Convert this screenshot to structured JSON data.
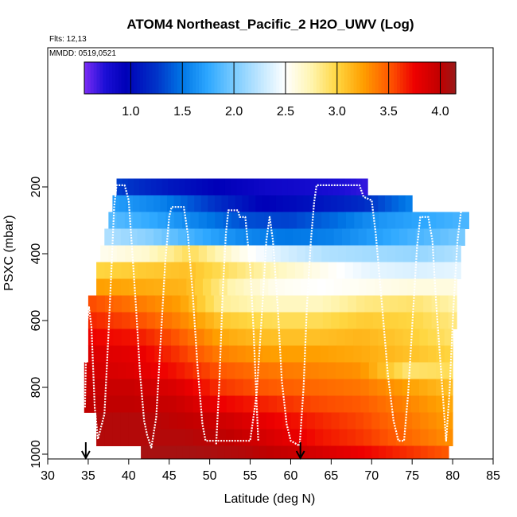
{
  "chart_data": {
    "type": "heatmap",
    "title": "ATOM4 Northeast_Pacific_2 H2O_UWV (Log)",
    "flights_note": "Flts: 12,13",
    "date_note": "MMDD: 0519,0521",
    "xlabel": "Latitude (deg N)",
    "ylabel": "PSXC (mbar)",
    "xlim": [
      30,
      85
    ],
    "ylim": [
      1000,
      0
    ],
    "x_ticks": [
      30,
      35,
      40,
      45,
      50,
      55,
      60,
      65,
      70,
      75,
      80,
      85
    ],
    "x_tick_labels": [
      "30",
      "35",
      "40",
      "45",
      "50",
      "55",
      "60",
      "65",
      "70",
      "75",
      "80",
      "85"
    ],
    "y_ticks": [
      200,
      400,
      600,
      800,
      1000
    ],
    "y_tick_labels": [
      "200",
      "400",
      "600",
      "800",
      "1000"
    ],
    "colorbar": {
      "range": [
        0.55,
        4.15
      ],
      "ticks": [
        1.0,
        1.5,
        2.0,
        2.5,
        3.0,
        3.5,
        4.0
      ],
      "tick_labels": [
        "1.0",
        "1.5",
        "2.0",
        "2.5",
        "3.0",
        "3.5",
        "4.0"
      ],
      "stops": [
        {
          "v": 0.55,
          "color": "#7b2cf5"
        },
        {
          "v": 0.75,
          "color": "#1c0fd6"
        },
        {
          "v": 0.95,
          "color": "#0000b8"
        },
        {
          "v": 1.25,
          "color": "#0033c8"
        },
        {
          "v": 1.5,
          "color": "#0077e6"
        },
        {
          "v": 1.75,
          "color": "#2ea8ff"
        },
        {
          "v": 2.0,
          "color": "#79cbff"
        },
        {
          "v": 2.25,
          "color": "#bfe6ff"
        },
        {
          "v": 2.5,
          "color": "#ffffff"
        },
        {
          "v": 2.75,
          "color": "#fff5b0"
        },
        {
          "v": 3.0,
          "color": "#ffd640"
        },
        {
          "v": 3.25,
          "color": "#ff9f00"
        },
        {
          "v": 3.5,
          "color": "#ff5a00"
        },
        {
          "v": 3.75,
          "color": "#ee0000"
        },
        {
          "v": 4.0,
          "color": "#c00000"
        },
        {
          "v": 4.15,
          "color": "#9a1a1a"
        }
      ]
    },
    "pressure_levels": [
      {
        "p": 200,
        "lat_start": 38.5,
        "lat_end": 69.5,
        "values": [
          1.3,
          1.1,
          0.95,
          0.85,
          0.8,
          0.7
        ]
      },
      {
        "p": 250,
        "lat_start": 38.0,
        "lat_end": 75.0,
        "values": [
          1.7,
          1.55,
          1.25,
          0.95,
          1.05,
          1.2,
          1.55
        ]
      },
      {
        "p": 300,
        "lat_start": 37.5,
        "lat_end": 82.0,
        "values": [
          1.9,
          1.75,
          1.55,
          1.35,
          1.3,
          1.45,
          1.65,
          1.75,
          1.85
        ]
      },
      {
        "p": 350,
        "lat_start": 37.0,
        "lat_end": 81.5,
        "values": [
          2.2,
          2.05,
          1.8,
          1.6,
          1.5,
          1.55,
          1.7,
          1.85,
          2.0
        ]
      },
      {
        "p": 400,
        "lat_start": 36.5,
        "lat_end": 81.0,
        "values": [
          2.55,
          2.65,
          2.95,
          2.6,
          2.35,
          2.2,
          2.15,
          2.1,
          2.2
        ]
      },
      {
        "p": 450,
        "lat_start": 36.0,
        "lat_end": 81.0,
        "values": [
          3.0,
          3.05,
          3.1,
          2.9,
          2.7,
          2.55,
          2.4,
          2.35,
          2.4
        ]
      },
      {
        "p": 500,
        "lat_start": 36.0,
        "lat_end": 80.5,
        "values": [
          3.25,
          3.2,
          3.15,
          2.75,
          2.55,
          2.5,
          2.55,
          2.6,
          2.6
        ]
      },
      {
        "p": 550,
        "lat_start": 35.0,
        "lat_end": 80.5,
        "values": [
          3.55,
          3.4,
          3.25,
          2.8,
          2.7,
          2.7,
          2.85,
          2.9,
          2.75
        ]
      },
      {
        "p": 600,
        "lat_start": 35.0,
        "lat_end": 80.5,
        "values": [
          3.65,
          3.55,
          3.35,
          3.05,
          2.95,
          2.95,
          3.05,
          3.0,
          2.85
        ]
      },
      {
        "p": 650,
        "lat_start": 35.0,
        "lat_end": 80.0,
        "values": [
          3.75,
          3.7,
          3.5,
          3.2,
          3.1,
          3.1,
          3.15,
          3.05,
          2.9
        ]
      },
      {
        "p": 700,
        "lat_start": 35.0,
        "lat_end": 80.0,
        "values": [
          3.85,
          3.8,
          3.6,
          3.35,
          3.25,
          3.25,
          3.2,
          3.1,
          3.0
        ]
      },
      {
        "p": 750,
        "lat_start": 34.5,
        "lat_end": 80.0,
        "values": [
          3.9,
          3.85,
          3.7,
          3.5,
          3.4,
          3.35,
          3.3,
          2.9,
          2.95
        ]
      },
      {
        "p": 800,
        "lat_start": 34.5,
        "lat_end": 80.0,
        "values": [
          3.95,
          3.95,
          3.85,
          3.6,
          3.5,
          3.45,
          3.4,
          3.25,
          3.1
        ]
      },
      {
        "p": 850,
        "lat_start": 34.5,
        "lat_end": 80.0,
        "values": [
          4.0,
          4.0,
          3.95,
          3.75,
          3.65,
          3.55,
          3.5,
          3.35,
          3.2
        ]
      },
      {
        "p": 900,
        "lat_start": 36.0,
        "lat_end": 80.0,
        "values": [
          4.05,
          4.05,
          4.0,
          3.9,
          3.75,
          3.65,
          3.55,
          3.4,
          3.25
        ]
      },
      {
        "p": 950,
        "lat_start": 36.0,
        "lat_end": 80.0,
        "values": [
          4.05,
          4.05,
          4.05,
          4.0,
          3.85,
          3.7,
          3.6,
          3.45,
          3.3
        ]
      },
      {
        "p": 1000,
        "lat_start": 41.5,
        "lat_end": 79.5,
        "values": [
          4.1,
          4.1,
          4.05,
          3.95,
          3.8,
          3.65,
          3.5
        ]
      }
    ],
    "flight_track": [
      [
        34.6,
        860
      ],
      [
        34.8,
        620
      ],
      [
        35.1,
        560
      ],
      [
        35.4,
        620
      ],
      [
        35.8,
        860
      ],
      [
        36.2,
        955
      ],
      [
        37.0,
        880
      ],
      [
        37.5,
        640
      ],
      [
        37.9,
        430
      ],
      [
        38.2,
        260
      ],
      [
        38.5,
        195
      ],
      [
        39.5,
        195
      ],
      [
        40.0,
        240
      ],
      [
        40.4,
        380
      ],
      [
        40.9,
        560
      ],
      [
        41.4,
        760
      ],
      [
        41.9,
        900
      ],
      [
        42.3,
        945
      ],
      [
        42.8,
        980
      ],
      [
        43.4,
        890
      ],
      [
        44.0,
        640
      ],
      [
        44.5,
        430
      ],
      [
        45.0,
        290
      ],
      [
        45.3,
        260
      ],
      [
        46.8,
        260
      ],
      [
        47.3,
        340
      ],
      [
        47.9,
        520
      ],
      [
        48.5,
        740
      ],
      [
        49.1,
        910
      ],
      [
        49.5,
        960
      ],
      [
        55.0,
        960
      ],
      [
        55.8,
        820
      ],
      [
        56.5,
        560
      ],
      [
        57.0,
        360
      ],
      [
        57.4,
        290
      ],
      [
        57.8,
        360
      ],
      [
        58.4,
        560
      ],
      [
        58.9,
        780
      ],
      [
        59.5,
        910
      ],
      [
        60.0,
        960
      ],
      [
        61.1,
        975
      ],
      [
        61.6,
        800
      ],
      [
        62.0,
        560
      ],
      [
        62.5,
        360
      ],
      [
        62.9,
        245
      ],
      [
        63.2,
        195
      ],
      [
        68.5,
        195
      ],
      [
        69.0,
        230
      ],
      [
        70.0,
        240
      ],
      [
        70.5,
        340
      ],
      [
        71.3,
        560
      ],
      [
        72.0,
        760
      ],
      [
        72.7,
        900
      ],
      [
        73.3,
        960
      ],
      [
        74.0,
        960
      ],
      [
        74.5,
        820
      ],
      [
        75.0,
        620
      ],
      [
        75.6,
        380
      ],
      [
        76.0,
        290
      ],
      [
        77.0,
        290
      ],
      [
        77.5,
        360
      ],
      [
        78.0,
        560
      ],
      [
        78.6,
        760
      ],
      [
        79.2,
        960
      ],
      [
        79.6,
        820
      ],
      [
        80.1,
        560
      ],
      [
        80.6,
        360
      ],
      [
        81.1,
        260
      ]
    ],
    "flight_track_segments": [
      [
        [
          50.8,
          970
        ],
        [
          51.2,
          780
        ],
        [
          51.6,
          520
        ],
        [
          52.0,
          340
        ],
        [
          52.3,
          270
        ],
        [
          53.5,
          270
        ],
        [
          53.7,
          290
        ],
        [
          54.4,
          290
        ],
        [
          55.0,
          440
        ],
        [
          55.4,
          620
        ],
        [
          55.8,
          850
        ],
        [
          56.0,
          960
        ]
      ]
    ],
    "markers": [
      {
        "label": "arrow",
        "lat": 34.7
      },
      {
        "label": "arrow",
        "lat": 61.2
      }
    ]
  }
}
